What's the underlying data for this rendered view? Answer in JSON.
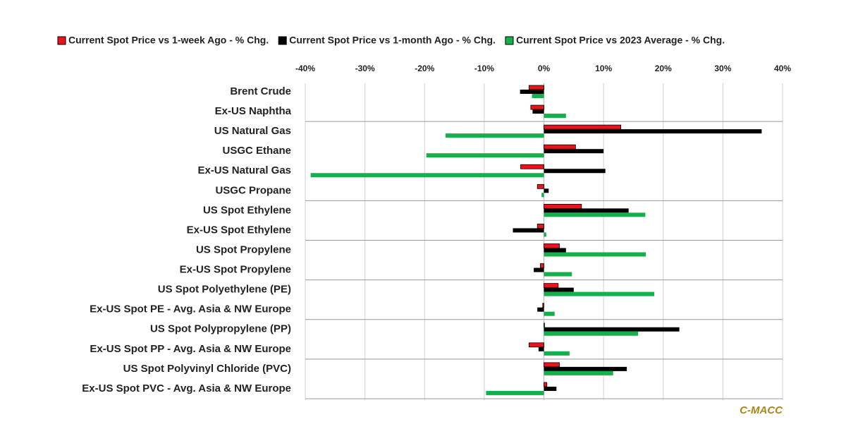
{
  "chart_data": {
    "type": "hbar",
    "categories": [
      "Brent Crude",
      "Ex-US Naphtha",
      "US Natural Gas",
      "USGC Ethane",
      "Ex-US Natural Gas",
      "USGC Propane",
      "US Spot Ethylene",
      "Ex-US Spot Ethylene",
      "US Spot Propylene",
      "Ex-US Spot Propylene",
      "US Spot Polyethylene (PE)",
      "Ex-US Spot PE - Avg. Asia & NW Europe",
      "US Spot Polypropylene (PP)",
      "Ex-US Spot PP - Avg. Asia & NW Europe",
      "US Spot Polyvinyl Chloride (PVC)",
      "Ex-US Spot PVC - Avg. Asia & NW Europe"
    ],
    "series": [
      {
        "name": "Current Spot Price vs 1-week Ago - % Chg.",
        "color": "#e8141c",
        "values": [
          -2.5,
          -2.2,
          12.9,
          5.3,
          -3.9,
          -1.1,
          6.3,
          -1.1,
          2.6,
          -0.6,
          2.4,
          -0.2,
          0.1,
          -2.5,
          2.6,
          0.5
        ]
      },
      {
        "name": "Current Spot Price vs 1-month Ago - % Chg.",
        "color": "#000000",
        "values": [
          -4.0,
          -1.9,
          36.5,
          10.0,
          10.3,
          0.8,
          14.2,
          -5.2,
          3.7,
          -1.7,
          5.0,
          -1.1,
          22.7,
          -0.9,
          13.9,
          2.1
        ]
      },
      {
        "name": "Current Spot Price vs 2023 Average - % Chg.",
        "color": "#14b14b",
        "values": [
          -2.0,
          3.7,
          -16.5,
          -19.7,
          -39.1,
          -0.4,
          17.0,
          0.4,
          17.1,
          4.7,
          18.5,
          1.8,
          15.8,
          4.3,
          11.6,
          -9.7
        ]
      }
    ],
    "xlim": [
      -40,
      40
    ],
    "xticks": [
      {
        "value": -40,
        "label": "-40%"
      },
      {
        "value": -30,
        "label": "-30%"
      },
      {
        "value": -20,
        "label": "-20%"
      },
      {
        "value": -10,
        "label": "-10%"
      },
      {
        "value": 0,
        "label": "0%"
      },
      {
        "value": 10,
        "label": "10%"
      },
      {
        "value": 20,
        "label": "20%"
      },
      {
        "value": 30,
        "label": "30%"
      },
      {
        "value": 40,
        "label": "40%"
      }
    ],
    "grid": true,
    "source": "C-MACC"
  }
}
